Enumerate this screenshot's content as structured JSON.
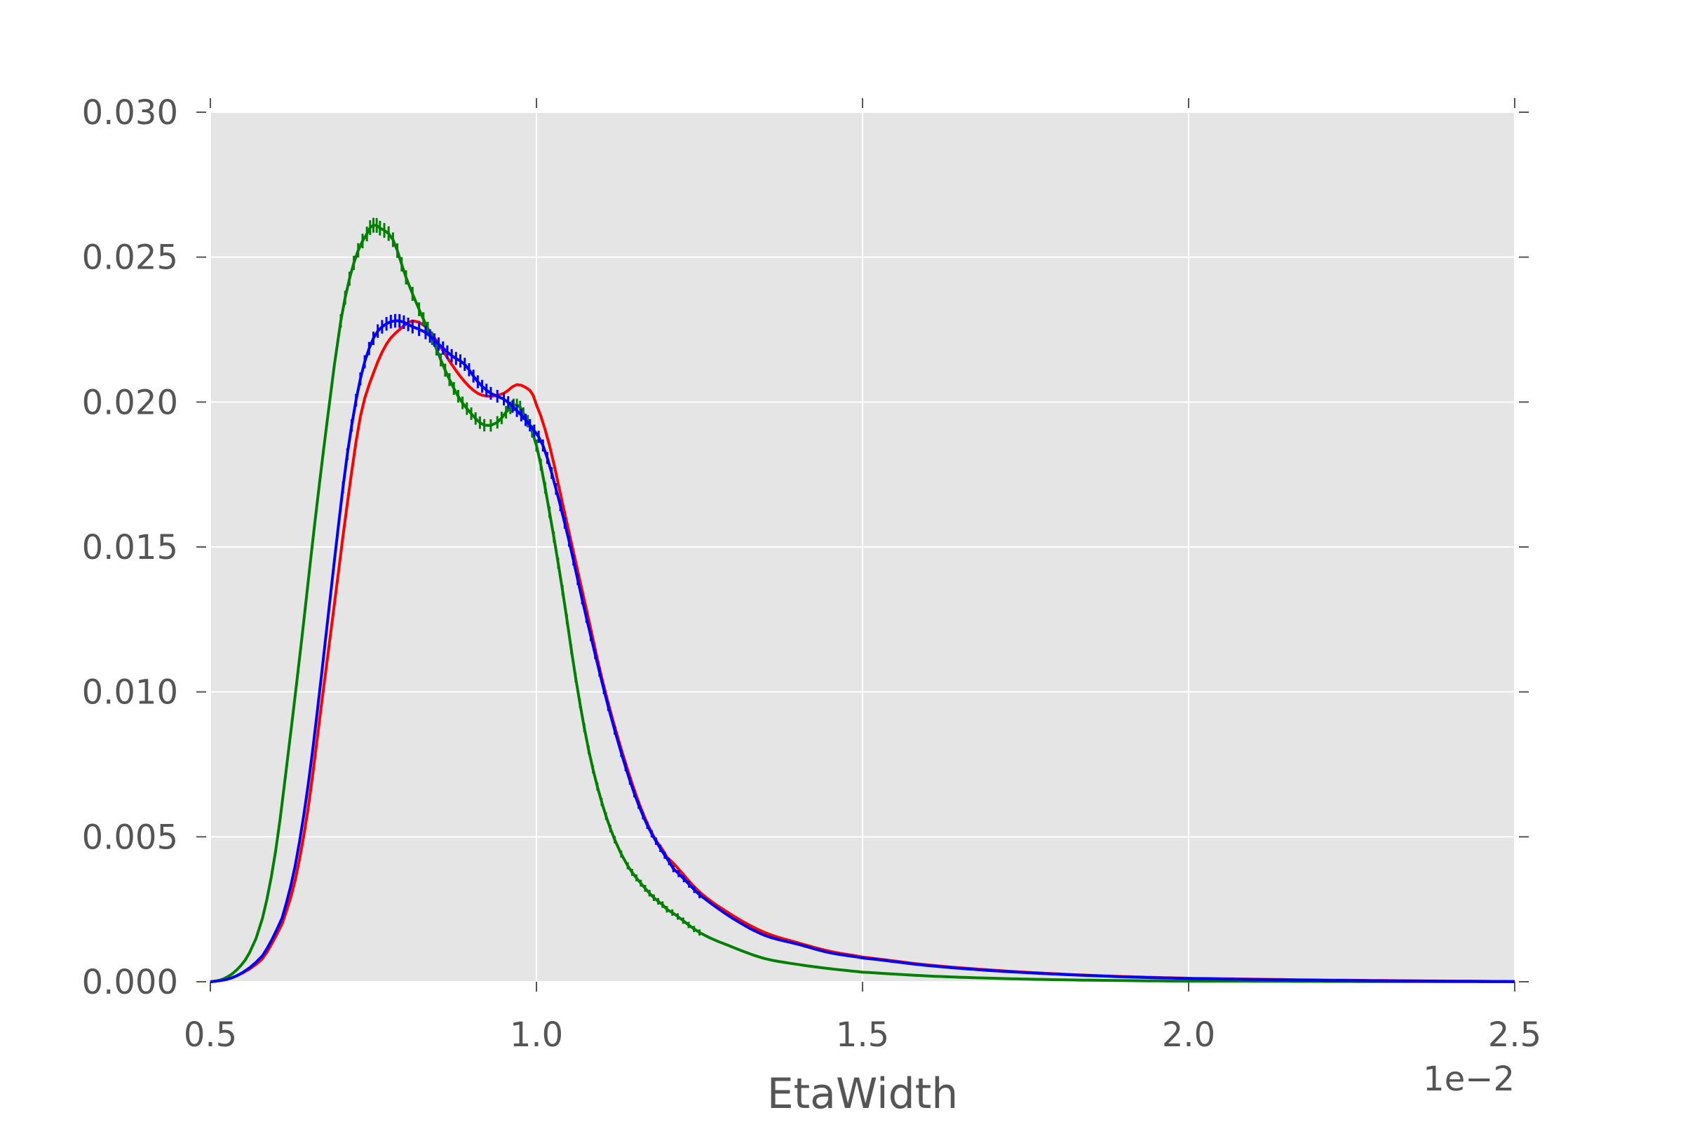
{
  "chart_data": {
    "type": "line",
    "title": "",
    "xlabel": "EtaWidth",
    "ylabel": "",
    "x_offset_label": "1e−2",
    "xlim": [
      0.5,
      2.5
    ],
    "ylim": [
      0.0,
      0.03
    ],
    "x_ticks": [
      0.5,
      1.0,
      1.5,
      2.0,
      2.5
    ],
    "x_tick_labels": [
      "0.5",
      "1.0",
      "1.5",
      "2.0",
      "2.5"
    ],
    "y_ticks": [
      0.0,
      0.005,
      0.01,
      0.015,
      0.02,
      0.025,
      0.03
    ],
    "y_tick_labels": [
      "0.000",
      "0.005",
      "0.010",
      "0.015",
      "0.020",
      "0.025",
      "0.030"
    ],
    "grid": true,
    "background": "#e5e5e5",
    "series": [
      {
        "color": "#ff0000",
        "error_bars": false,
        "points": [
          [
            0.5,
            0.0
          ],
          [
            0.54,
            0.0002
          ],
          [
            0.58,
            0.0008
          ],
          [
            0.61,
            0.002
          ],
          [
            0.63,
            0.0035
          ],
          [
            0.65,
            0.006
          ],
          [
            0.67,
            0.0095
          ],
          [
            0.69,
            0.013
          ],
          [
            0.71,
            0.0165
          ],
          [
            0.73,
            0.0195
          ],
          [
            0.75,
            0.021
          ],
          [
            0.77,
            0.022
          ],
          [
            0.79,
            0.0225
          ],
          [
            0.81,
            0.0228
          ],
          [
            0.83,
            0.0226
          ],
          [
            0.85,
            0.022
          ],
          [
            0.87,
            0.0213
          ],
          [
            0.89,
            0.0207
          ],
          [
            0.91,
            0.0203
          ],
          [
            0.93,
            0.0202
          ],
          [
            0.95,
            0.0203
          ],
          [
            0.97,
            0.0206
          ],
          [
            0.99,
            0.0204
          ],
          [
            1.0,
            0.0199
          ],
          [
            1.02,
            0.0185
          ],
          [
            1.04,
            0.0165
          ],
          [
            1.06,
            0.0145
          ],
          [
            1.08,
            0.0125
          ],
          [
            1.1,
            0.0105
          ],
          [
            1.12,
            0.0088
          ],
          [
            1.14,
            0.0073
          ],
          [
            1.16,
            0.006
          ],
          [
            1.18,
            0.005
          ],
          [
            1.2,
            0.0043
          ],
          [
            1.25,
            0.0031
          ],
          [
            1.3,
            0.0023
          ],
          [
            1.35,
            0.0017
          ],
          [
            1.4,
            0.00135
          ],
          [
            1.45,
            0.00105
          ],
          [
            1.5,
            0.00085
          ],
          [
            1.6,
            0.00058
          ],
          [
            1.7,
            0.0004
          ],
          [
            1.8,
            0.00027
          ],
          [
            1.9,
            0.00018
          ],
          [
            2.0,
            0.00012
          ],
          [
            2.2,
            6e-05
          ],
          [
            2.5,
            1e-05
          ]
        ]
      },
      {
        "color": "#008000",
        "error_bars": true,
        "points": [
          [
            0.5,
            0.0
          ],
          [
            0.52,
            0.0001
          ],
          [
            0.54,
            0.0004
          ],
          [
            0.56,
            0.001
          ],
          [
            0.58,
            0.0022
          ],
          [
            0.6,
            0.0045
          ],
          [
            0.62,
            0.008
          ],
          [
            0.64,
            0.0118
          ],
          [
            0.66,
            0.0158
          ],
          [
            0.68,
            0.0195
          ],
          [
            0.7,
            0.0228
          ],
          [
            0.72,
            0.0248
          ],
          [
            0.74,
            0.0258
          ],
          [
            0.75,
            0.0261
          ],
          [
            0.76,
            0.026
          ],
          [
            0.78,
            0.0256
          ],
          [
            0.8,
            0.0243
          ],
          [
            0.82,
            0.0232
          ],
          [
            0.84,
            0.0222
          ],
          [
            0.86,
            0.0211
          ],
          [
            0.88,
            0.0202
          ],
          [
            0.9,
            0.0196
          ],
          [
            0.92,
            0.0192
          ],
          [
            0.94,
            0.0193
          ],
          [
            0.96,
            0.0198
          ],
          [
            0.97,
            0.0199
          ],
          [
            0.98,
            0.0196
          ],
          [
            1.0,
            0.0185
          ],
          [
            1.02,
            0.0162
          ],
          [
            1.04,
            0.0135
          ],
          [
            1.06,
            0.0105
          ],
          [
            1.08,
            0.008
          ],
          [
            1.1,
            0.0062
          ],
          [
            1.12,
            0.0049
          ],
          [
            1.14,
            0.004
          ],
          [
            1.16,
            0.0034
          ],
          [
            1.18,
            0.0029
          ],
          [
            1.2,
            0.0025
          ],
          [
            1.25,
            0.0017
          ],
          [
            1.3,
            0.0012
          ],
          [
            1.35,
            0.0008
          ],
          [
            1.4,
            0.0006
          ],
          [
            1.45,
            0.00045
          ],
          [
            1.5,
            0.00033
          ],
          [
            1.6,
            0.0002
          ],
          [
            1.7,
            0.00012
          ],
          [
            1.8,
            7e-05
          ],
          [
            1.9,
            4e-05
          ],
          [
            2.0,
            2e-05
          ],
          [
            2.5,
            0.0
          ]
        ]
      },
      {
        "color": "#0000ff",
        "error_bars": true,
        "points": [
          [
            0.5,
            0.0
          ],
          [
            0.54,
            0.0002
          ],
          [
            0.58,
            0.0009
          ],
          [
            0.61,
            0.0022
          ],
          [
            0.63,
            0.004
          ],
          [
            0.65,
            0.0068
          ],
          [
            0.67,
            0.0105
          ],
          [
            0.69,
            0.0145
          ],
          [
            0.71,
            0.0182
          ],
          [
            0.73,
            0.0208
          ],
          [
            0.75,
            0.0222
          ],
          [
            0.77,
            0.0227
          ],
          [
            0.79,
            0.0228
          ],
          [
            0.81,
            0.0226
          ],
          [
            0.83,
            0.0224
          ],
          [
            0.85,
            0.022
          ],
          [
            0.87,
            0.0216
          ],
          [
            0.89,
            0.0213
          ],
          [
            0.91,
            0.0207
          ],
          [
            0.93,
            0.0203
          ],
          [
            0.95,
            0.0201
          ],
          [
            0.97,
            0.0197
          ],
          [
            0.99,
            0.0192
          ],
          [
            1.01,
            0.0185
          ],
          [
            1.03,
            0.017
          ],
          [
            1.05,
            0.0152
          ],
          [
            1.07,
            0.0132
          ],
          [
            1.09,
            0.0113
          ],
          [
            1.11,
            0.0095
          ],
          [
            1.13,
            0.0079
          ],
          [
            1.15,
            0.0065
          ],
          [
            1.17,
            0.0054
          ],
          [
            1.19,
            0.0046
          ],
          [
            1.21,
            0.0039
          ],
          [
            1.25,
            0.003
          ],
          [
            1.3,
            0.0022
          ],
          [
            1.35,
            0.0016
          ],
          [
            1.4,
            0.0013
          ],
          [
            1.45,
            0.001
          ],
          [
            1.5,
            0.00082
          ],
          [
            1.6,
            0.00056
          ],
          [
            1.7,
            0.00038
          ],
          [
            1.8,
            0.00026
          ],
          [
            1.9,
            0.00017
          ],
          [
            2.0,
            0.00011
          ],
          [
            2.2,
            5e-05
          ],
          [
            2.5,
            1e-05
          ]
        ]
      }
    ]
  }
}
